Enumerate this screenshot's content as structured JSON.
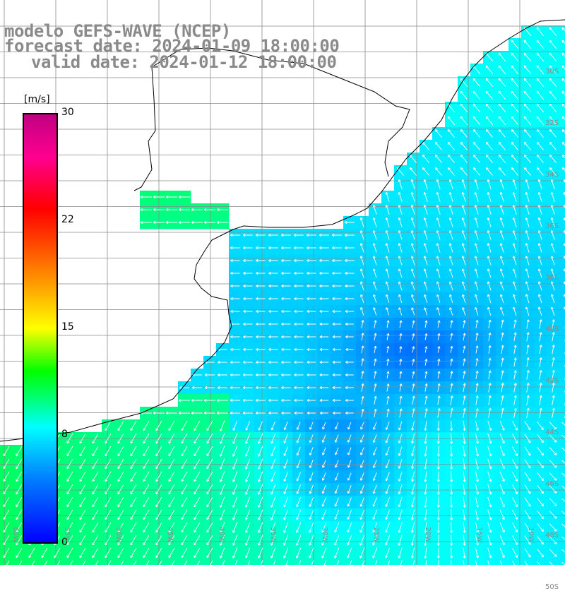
{
  "title": {
    "line1": "modelo GEFS-WAVE (NCEP)",
    "line2": "forecast date: 2024-01-09 18:00:00",
    "line3": "valid date: 2024-01-12 18:00:00"
  },
  "colorbar": {
    "unit": "[m/s]",
    "ticks": [
      "30",
      "22",
      "15",
      "8",
      "0"
    ],
    "colors": [
      "#0000ff",
      "#0080ff",
      "#00ffff",
      "#00ff80",
      "#00ff00",
      "#ffff00",
      "#ff8000",
      "#ff0000",
      "#c00080"
    ]
  },
  "axis_labels": {
    "lon": [
      "60W",
      "55W",
      "50W",
      "45W",
      "40W",
      "35W",
      "30W",
      "25W",
      "20W",
      "15W",
      "10W"
    ],
    "lat": [
      "30S",
      "32S",
      "34S",
      "36S",
      "38S",
      "40S",
      "42S",
      "44S",
      "46S",
      "48S",
      "50S"
    ]
  },
  "map": {
    "land_color": "#ffffff",
    "coast_color": "#000000",
    "grid_color": "#8a8a8a",
    "arrow_color": "#ffffff"
  }
}
